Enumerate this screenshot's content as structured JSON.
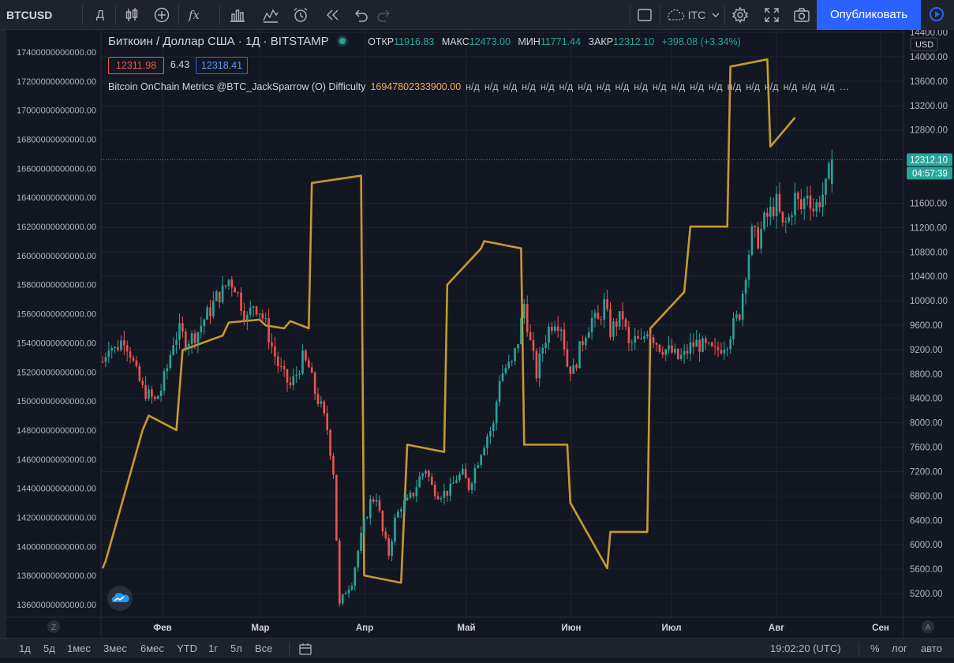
{
  "toolbar": {
    "symbol": "BTCUSD",
    "interval": "Д",
    "indicator_glyph": "fx",
    "compare_label": "ІТС",
    "publish_label": "Опубликовать"
  },
  "legend": {
    "title": "Биткоин / Доллар США · 1Д · BITSTAMP",
    "open_label": "ОТКР",
    "open": "11916.83",
    "high_label": "МАКС",
    "high": "12473.00",
    "low_label": "МИН",
    "low": "11771.44",
    "close_label": "ЗАКР",
    "close": "12312.10",
    "change": "+398.08 (+3.34%)",
    "bid": "12311.98",
    "spread": "6.43",
    "ask": "12318.41"
  },
  "indicator": {
    "name": "Bitcoin OnChain Metrics @BTC_JackSparrow (O) Difficulty",
    "value": "16947802333900.00",
    "na_values": [
      "н/д",
      "н/д",
      "н/д",
      "н/д",
      "н/д",
      "н/д",
      "н/д",
      "н/д",
      "н/д",
      "н/д",
      "н/д",
      "н/д",
      "н/д",
      "н/д",
      "н/д",
      "н/д",
      "н/д",
      "н/д",
      "н/д",
      "н/д"
    ],
    "ellipsis": "…"
  },
  "right_axis": {
    "currency": "USD",
    "ticks": [
      "14400.00",
      "14000.00",
      "13600.00",
      "13200.00",
      "12800.00",
      "11600.00",
      "11200.00",
      "10800.00",
      "10400.00",
      "10000.00",
      "9600.00",
      "9200.00",
      "8800.00",
      "8400.00",
      "8000.00",
      "7600.00",
      "7200.00",
      "6800.00",
      "6400.00",
      "6000.00",
      "5600.00",
      "5200.00"
    ],
    "last_price": "12312.10",
    "countdown": "04:57:39",
    "auto_label": "A"
  },
  "left_axis": {
    "ticks": [
      "17400000000000.00",
      "17200000000000.00",
      "17000000000000.00",
      "16800000000000.00",
      "16600000000000.00",
      "16400000000000.00",
      "16200000000000.00",
      "16000000000000.00",
      "15800000000000.00",
      "15600000000000.00",
      "15400000000000.00",
      "15200000000000.00",
      "15000000000000.00",
      "14800000000000.00",
      "14600000000000.00",
      "14400000000000.00",
      "14200000000000.00",
      "14000000000000.00",
      "13800000000000.00",
      "13600000000000.00"
    ],
    "zoom_label": "Z"
  },
  "time_axis": {
    "labels": [
      "Фев",
      "Мар",
      "Апр",
      "Май",
      "Июн",
      "Июл",
      "Авг",
      "Сен"
    ]
  },
  "bottom_bar": {
    "ranges": [
      "1д",
      "5д",
      "1мес",
      "3мес",
      "6мес",
      "YTD",
      "1г",
      "5л",
      "Все"
    ],
    "clock": "19:02:20 (UTC)",
    "percent": "%",
    "log": "лог",
    "auto": "авто"
  },
  "chart_data": {
    "type": "candlestick",
    "symbol": "BTCUSD",
    "interval": "1D",
    "price_range": [
      5000,
      14500
    ],
    "difficulty_range": [
      13550000000000,
      17500000000000
    ],
    "colors": {
      "up": "#26a69a",
      "down": "#ef5350",
      "difficulty": "#c79a2c"
    },
    "price_path": [
      [
        0,
        9000
      ],
      [
        2,
        9300
      ],
      [
        4,
        9200
      ],
      [
        7,
        9400
      ],
      [
        9,
        9150
      ],
      [
        11,
        8800
      ],
      [
        13,
        8550
      ],
      [
        15,
        8450
      ],
      [
        17,
        8350
      ],
      [
        19,
        8550
      ],
      [
        21,
        8900
      ],
      [
        23,
        9350
      ],
      [
        25,
        9500
      ],
      [
        27,
        9350
      ],
      [
        29,
        9400
      ],
      [
        31,
        9500
      ],
      [
        33,
        9700
      ],
      [
        35,
        9850
      ],
      [
        37,
        10050
      ],
      [
        39,
        10150
      ],
      [
        41,
        10350
      ],
      [
        43,
        10250
      ],
      [
        45,
        9950
      ],
      [
        47,
        9700
      ],
      [
        49,
        9950
      ],
      [
        51,
        9850
      ],
      [
        53,
        9600
      ],
      [
        55,
        9250
      ],
      [
        57,
        8950
      ],
      [
        59,
        8750
      ],
      [
        61,
        8600
      ],
      [
        63,
        8800
      ],
      [
        65,
        9050
      ],
      [
        67,
        8900
      ],
      [
        69,
        8500
      ],
      [
        71,
        8250
      ],
      [
        73,
        7900
      ],
      [
        75,
        7200
      ],
      [
        77,
        5000
      ],
      [
        79,
        5250
      ],
      [
        81,
        5400
      ],
      [
        83,
        5900
      ],
      [
        85,
        6350
      ],
      [
        87,
        6700
      ],
      [
        89,
        6800
      ],
      [
        91,
        6200
      ],
      [
        93,
        5850
      ],
      [
        95,
        6400
      ],
      [
        97,
        6650
      ],
      [
        99,
        6700
      ],
      [
        101,
        6850
      ],
      [
        103,
        7100
      ],
      [
        105,
        7250
      ],
      [
        107,
        6950
      ],
      [
        109,
        6850
      ],
      [
        111,
        6850
      ],
      [
        113,
        6900
      ],
      [
        115,
        7100
      ],
      [
        117,
        7150
      ],
      [
        119,
        6950
      ],
      [
        121,
        7250
      ],
      [
        123,
        7550
      ],
      [
        125,
        7800
      ],
      [
        127,
        7950
      ],
      [
        129,
        8750
      ],
      [
        131,
        8900
      ],
      [
        133,
        8950
      ],
      [
        135,
        9350
      ],
      [
        137,
        9950
      ],
      [
        139,
        9300
      ],
      [
        141,
        8800
      ],
      [
        143,
        9250
      ],
      [
        145,
        9550
      ],
      [
        147,
        9700
      ],
      [
        149,
        9600
      ],
      [
        151,
        8950
      ],
      [
        153,
        8850
      ],
      [
        155,
        9200
      ],
      [
        157,
        9500
      ],
      [
        159,
        9700
      ],
      [
        161,
        9650
      ],
      [
        163,
        9950
      ],
      [
        165,
        9500
      ],
      [
        167,
        9650
      ],
      [
        169,
        9750
      ],
      [
        171,
        9250
      ],
      [
        173,
        9350
      ],
      [
        175,
        9300
      ],
      [
        177,
        9550
      ],
      [
        179,
        9400
      ],
      [
        181,
        9250
      ],
      [
        183,
        9200
      ],
      [
        185,
        9150
      ],
      [
        187,
        9050
      ],
      [
        189,
        9100
      ],
      [
        191,
        9250
      ],
      [
        193,
        9300
      ],
      [
        195,
        9250
      ],
      [
        197,
        9200
      ],
      [
        199,
        9150
      ],
      [
        201,
        9250
      ],
      [
        203,
        9350
      ],
      [
        205,
        9600
      ],
      [
        207,
        9800
      ],
      [
        209,
        10500
      ],
      [
        211,
        11100
      ],
      [
        213,
        11000
      ],
      [
        215,
        11300
      ],
      [
        217,
        11450
      ],
      [
        219,
        11600
      ],
      [
        221,
        11200
      ],
      [
        223,
        11350
      ],
      [
        225,
        11700
      ],
      [
        227,
        11500
      ],
      [
        229,
        11800
      ],
      [
        231,
        11500
      ],
      [
        233,
        11650
      ],
      [
        235,
        11850
      ],
      [
        237,
        12312
      ]
    ],
    "difficulty": {
      "dates": [
        "Jan 1",
        "Jan 2",
        "Jan 14",
        "Jan 16",
        "Jan 25",
        "Jan 27",
        "Feb 9",
        "Feb 11",
        "Feb 21",
        "Feb 23",
        "Mar 1",
        "Mar 3",
        "Mar 9",
        "Mar 10",
        "Mar 26",
        "Mar 27",
        "Apr 8",
        "Apr 10",
        "Apr 22",
        "Apr 23",
        "May 4",
        "May 5",
        "May 17",
        "May 18",
        "Jun 1",
        "Jun 2",
        "Jun 14",
        "Jun 15",
        "Jun 27",
        "Jun 28",
        "Jul 9",
        "Jul 11",
        "Jul 23",
        "Jul 24",
        "Aug 5",
        "Aug 6",
        "Aug 14"
      ],
      "values": [
        13850000000000,
        13900000000000,
        14800000000000,
        14900000000000,
        14800000000000,
        15350000000000,
        15450000000000,
        15540000000000,
        15560000000000,
        15520000000000,
        15500000000000,
        15550000000000,
        15500000000000,
        16500000000000,
        16550000000000,
        13800000000000,
        13750000000000,
        14700000000000,
        14650000000000,
        15800000000000,
        16050000000000,
        16100000000000,
        16050000000000,
        14700000000000,
        14700000000000,
        14300000000000,
        13850000000000,
        14100000000000,
        14100000000000,
        15500000000000,
        15750000000000,
        16200000000000,
        16200000000000,
        17300000000000,
        17350000000000,
        16750000000000,
        16950000000000
      ]
    }
  }
}
